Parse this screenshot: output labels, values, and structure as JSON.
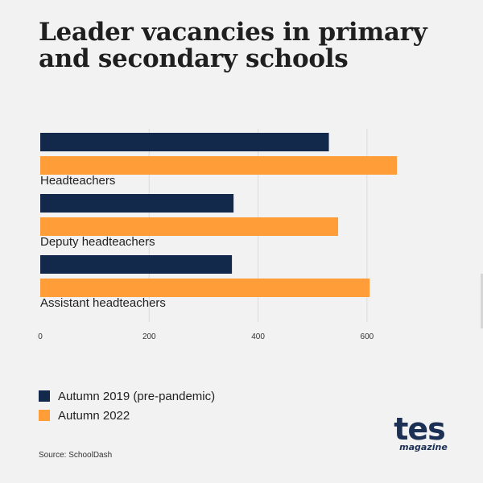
{
  "title": "Leader vacancies in primary and secondary schools",
  "source": "Source: SchoolDash",
  "logo": {
    "main": "tes",
    "sub": "magazine"
  },
  "chart_data": {
    "type": "bar",
    "orientation": "horizontal",
    "categories": [
      "Headteachers",
      "Deputy headteachers",
      "Assistant headteachers"
    ],
    "series": [
      {
        "name": "Autumn 2019 (pre-pandemic)",
        "color": "#13294b",
        "values": [
          530,
          355,
          352
        ]
      },
      {
        "name": "Autumn 2022",
        "color": "#ff9d38",
        "values": [
          655,
          547,
          605
        ]
      }
    ],
    "xticks": [
      0,
      200,
      400,
      600
    ],
    "xlim": [
      0,
      680
    ],
    "grid": true,
    "legend_position": "bottom-left",
    "xlabel": "",
    "ylabel": ""
  }
}
